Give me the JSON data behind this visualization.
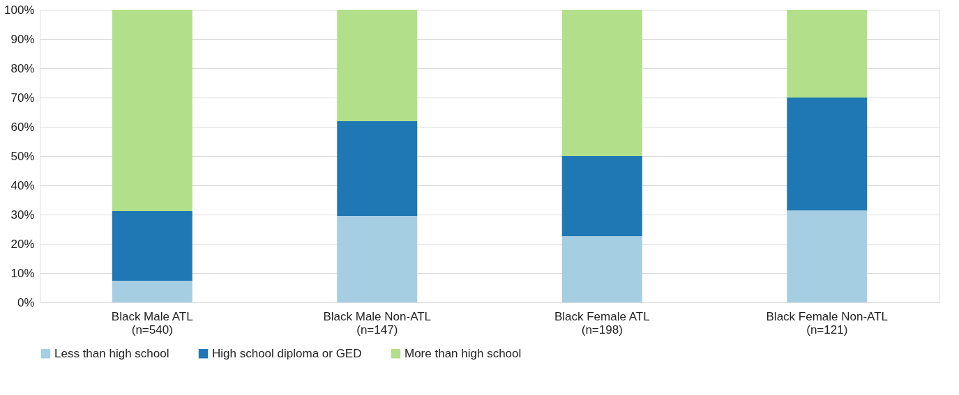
{
  "chart_data": {
    "type": "bar",
    "stacked": true,
    "categories": [
      "Black Male ATL\n(n=540)",
      "Black Male Non-ATL\n(n=147)",
      "Black Female ATL\n(n=198)",
      "Black Female Non-ATL\n(n=121)"
    ],
    "series": [
      {
        "name": "Less than high school",
        "color": "#a6cee3",
        "values": [
          7.4,
          29.5,
          22.6,
          31.4
        ]
      },
      {
        "name": "High school diploma or GED",
        "color": "#1f78b4",
        "values": [
          23.8,
          32.4,
          27.4,
          38.6
        ]
      },
      {
        "name": "More than high school",
        "color": "#b2df8a",
        "values": [
          68.8,
          38.1,
          50.0,
          30.0
        ]
      }
    ],
    "ylim": [
      0,
      100
    ],
    "yticks": [
      {
        "value": 0,
        "label": "0%"
      },
      {
        "value": 10,
        "label": "10%"
      },
      {
        "value": 20,
        "label": "20%"
      },
      {
        "value": 30,
        "label": "30%"
      },
      {
        "value": 40,
        "label": "40%"
      },
      {
        "value": 50,
        "label": "50%"
      },
      {
        "value": 60,
        "label": "60%"
      },
      {
        "value": 70,
        "label": "70%"
      },
      {
        "value": 80,
        "label": "80%"
      },
      {
        "value": 90,
        "label": "90%"
      },
      {
        "value": 100,
        "label": "100%"
      }
    ],
    "grid": "y",
    "legend": "bottom"
  }
}
